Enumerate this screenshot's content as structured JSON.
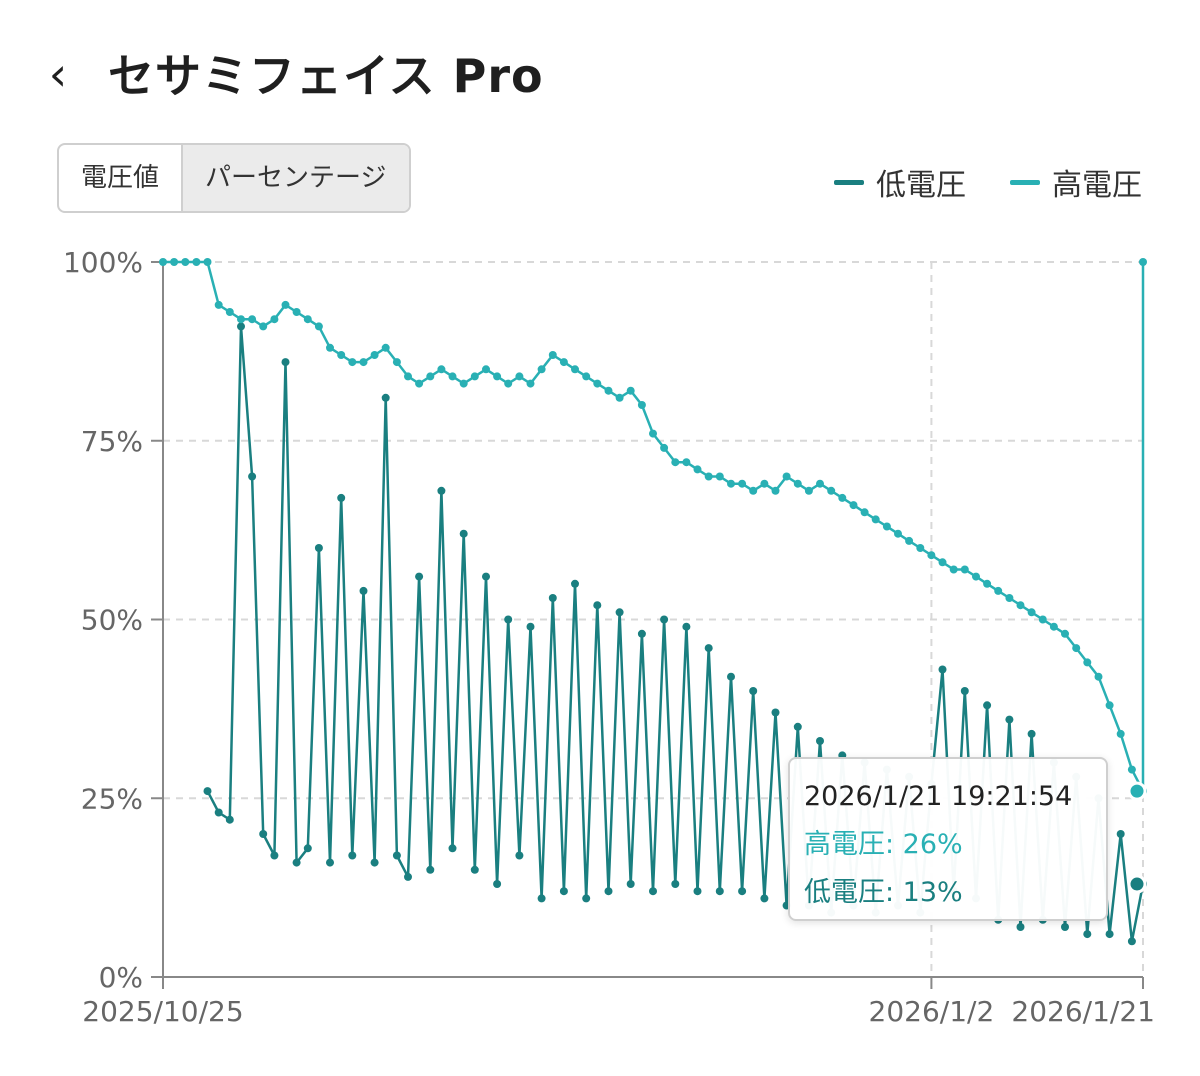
{
  "header": {
    "back_icon": "chevron-left-icon",
    "back_glyph": "‹",
    "title": "セサミフェイス Pro"
  },
  "toggle": {
    "options": [
      "電圧値",
      "パーセンテージ"
    ],
    "selected": "パーセンテージ"
  },
  "colors": {
    "low": "#1a7f80",
    "high": "#29b0b4",
    "grid": "#d8d8d8",
    "axis": "#888888"
  },
  "legend": {
    "low_label": "低電圧",
    "high_label": "高電圧"
  },
  "tooltip": {
    "time": "2026/1/21 19:21:54",
    "high_line": "高電圧: 26%",
    "low_line": "低電圧: 13%"
  },
  "chart_data": {
    "type": "line",
    "x_axis": {
      "type": "date",
      "ticks": [
        "2025/10/25",
        "2026/1/2",
        "2026/1/21"
      ],
      "range": [
        "2025/10/25",
        "2026/1/21"
      ]
    },
    "y_axis": {
      "ticks": [
        "0%",
        "25%",
        "50%",
        "75%",
        "100%"
      ],
      "range": [
        0,
        100
      ],
      "unit": "%"
    },
    "grid": true,
    "legend_position": "top-right",
    "series": [
      {
        "name": "高電圧",
        "color": "#29b0b4",
        "points": [
          [
            "2025/10/25",
            100
          ],
          [
            "2025/10/26",
            100
          ],
          [
            "2025/10/27",
            100
          ],
          [
            "2025/10/28",
            100
          ],
          [
            "2025/10/29",
            100
          ],
          [
            "2025/10/30",
            94
          ],
          [
            "2025/10/31",
            93
          ],
          [
            "2025/11/1",
            92
          ],
          [
            "2025/11/2",
            92
          ],
          [
            "2025/11/3",
            91
          ],
          [
            "2025/11/4",
            92
          ],
          [
            "2025/11/5",
            94
          ],
          [
            "2025/11/6",
            93
          ],
          [
            "2025/11/7",
            92
          ],
          [
            "2025/11/8",
            91
          ],
          [
            "2025/11/9",
            88
          ],
          [
            "2025/11/10",
            87
          ],
          [
            "2025/11/11",
            86
          ],
          [
            "2025/11/12",
            86
          ],
          [
            "2025/11/13",
            87
          ],
          [
            "2025/11/14",
            88
          ],
          [
            "2025/11/15",
            86
          ],
          [
            "2025/11/16",
            84
          ],
          [
            "2025/11/17",
            83
          ],
          [
            "2025/11/18",
            84
          ],
          [
            "2025/11/19",
            85
          ],
          [
            "2025/11/20",
            84
          ],
          [
            "2025/11/21",
            83
          ],
          [
            "2025/11/22",
            84
          ],
          [
            "2025/11/23",
            85
          ],
          [
            "2025/11/24",
            84
          ],
          [
            "2025/11/25",
            83
          ],
          [
            "2025/11/26",
            84
          ],
          [
            "2025/11/27",
            83
          ],
          [
            "2025/11/28",
            85
          ],
          [
            "2025/11/29",
            87
          ],
          [
            "2025/11/30",
            86
          ],
          [
            "2025/12/1",
            85
          ],
          [
            "2025/12/2",
            84
          ],
          [
            "2025/12/3",
            83
          ],
          [
            "2025/12/4",
            82
          ],
          [
            "2025/12/5",
            81
          ],
          [
            "2025/12/6",
            82
          ],
          [
            "2025/12/7",
            80
          ],
          [
            "2025/12/8",
            76
          ],
          [
            "2025/12/9",
            74
          ],
          [
            "2025/12/10",
            72
          ],
          [
            "2025/12/11",
            72
          ],
          [
            "2025/12/12",
            71
          ],
          [
            "2025/12/13",
            70
          ],
          [
            "2025/12/14",
            70
          ],
          [
            "2025/12/15",
            69
          ],
          [
            "2025/12/16",
            69
          ],
          [
            "2025/12/17",
            68
          ],
          [
            "2025/12/18",
            69
          ],
          [
            "2025/12/19",
            68
          ],
          [
            "2025/12/20",
            70
          ],
          [
            "2025/12/21",
            69
          ],
          [
            "2025/12/22",
            68
          ],
          [
            "2025/12/23",
            69
          ],
          [
            "2025/12/24",
            68
          ],
          [
            "2025/12/25",
            67
          ],
          [
            "2025/12/26",
            66
          ],
          [
            "2025/12/27",
            65
          ],
          [
            "2025/12/28",
            64
          ],
          [
            "2025/12/29",
            63
          ],
          [
            "2025/12/30",
            62
          ],
          [
            "2025/12/31",
            61
          ],
          [
            "2026/1/1",
            60
          ],
          [
            "2026/1/2",
            59
          ],
          [
            "2026/1/3",
            58
          ],
          [
            "2026/1/4",
            57
          ],
          [
            "2026/1/5",
            57
          ],
          [
            "2026/1/6",
            56
          ],
          [
            "2026/1/7",
            55
          ],
          [
            "2026/1/8",
            54
          ],
          [
            "2026/1/9",
            53
          ],
          [
            "2026/1/10",
            52
          ],
          [
            "2026/1/11",
            51
          ],
          [
            "2026/1/12",
            50
          ],
          [
            "2026/1/13",
            49
          ],
          [
            "2026/1/14",
            48
          ],
          [
            "2026/1/15",
            46
          ],
          [
            "2026/1/16",
            44
          ],
          [
            "2026/1/17",
            42
          ],
          [
            "2026/1/18",
            38
          ],
          [
            "2026/1/19",
            34
          ],
          [
            "2026/1/20",
            29
          ],
          [
            "2026/1/21",
            26
          ],
          [
            "2026/1/21",
            100
          ]
        ]
      },
      {
        "name": "低電圧",
        "color": "#1a7f80",
        "points": [
          [
            "2025/10/29",
            26
          ],
          [
            "2025/10/30",
            23
          ],
          [
            "2025/10/31",
            22
          ],
          [
            "2025/11/1",
            91
          ],
          [
            "2025/11/2",
            70
          ],
          [
            "2025/11/3",
            20
          ],
          [
            "2025/11/4",
            17
          ],
          [
            "2025/11/5",
            86
          ],
          [
            "2025/11/6",
            16
          ],
          [
            "2025/11/7",
            18
          ],
          [
            "2025/11/8",
            60
          ],
          [
            "2025/11/9",
            16
          ],
          [
            "2025/11/10",
            67
          ],
          [
            "2025/11/11",
            17
          ],
          [
            "2025/11/12",
            54
          ],
          [
            "2025/11/13",
            16
          ],
          [
            "2025/11/14",
            81
          ],
          [
            "2025/11/15",
            17
          ],
          [
            "2025/11/16",
            14
          ],
          [
            "2025/11/17",
            56
          ],
          [
            "2025/11/18",
            15
          ],
          [
            "2025/11/19",
            68
          ],
          [
            "2025/11/20",
            18
          ],
          [
            "2025/11/21",
            62
          ],
          [
            "2025/11/22",
            15
          ],
          [
            "2025/11/23",
            56
          ],
          [
            "2025/11/24",
            13
          ],
          [
            "2025/11/25",
            50
          ],
          [
            "2025/11/26",
            17
          ],
          [
            "2025/11/27",
            49
          ],
          [
            "2025/11/28",
            11
          ],
          [
            "2025/11/29",
            53
          ],
          [
            "2025/11/30",
            12
          ],
          [
            "2025/12/1",
            55
          ],
          [
            "2025/12/2",
            11
          ],
          [
            "2025/12/3",
            52
          ],
          [
            "2025/12/4",
            12
          ],
          [
            "2025/12/5",
            51
          ],
          [
            "2025/12/6",
            13
          ],
          [
            "2025/12/7",
            48
          ],
          [
            "2025/12/8",
            12
          ],
          [
            "2025/12/9",
            50
          ],
          [
            "2025/12/10",
            13
          ],
          [
            "2025/12/11",
            49
          ],
          [
            "2025/12/12",
            12
          ],
          [
            "2025/12/13",
            46
          ],
          [
            "2025/12/14",
            12
          ],
          [
            "2025/12/15",
            42
          ],
          [
            "2025/12/16",
            12
          ],
          [
            "2025/12/17",
            40
          ],
          [
            "2025/12/18",
            11
          ],
          [
            "2025/12/19",
            37
          ],
          [
            "2025/12/20",
            10
          ],
          [
            "2025/12/21",
            35
          ],
          [
            "2025/12/22",
            10
          ],
          [
            "2025/12/23",
            33
          ],
          [
            "2025/12/24",
            9
          ],
          [
            "2025/12/25",
            31
          ],
          [
            "2025/12/26",
            10
          ],
          [
            "2025/12/27",
            30
          ],
          [
            "2025/12/28",
            9
          ],
          [
            "2025/12/29",
            29
          ],
          [
            "2025/12/30",
            10
          ],
          [
            "2025/12/31",
            28
          ],
          [
            "2026/1/1",
            9
          ],
          [
            "2026/1/2",
            27
          ],
          [
            "2026/1/3",
            43
          ],
          [
            "2026/1/4",
            12
          ],
          [
            "2026/1/5",
            40
          ],
          [
            "2026/1/6",
            11
          ],
          [
            "2026/1/7",
            38
          ],
          [
            "2026/1/8",
            8
          ],
          [
            "2026/1/9",
            36
          ],
          [
            "2026/1/10",
            7
          ],
          [
            "2026/1/11",
            34
          ],
          [
            "2026/1/12",
            8
          ],
          [
            "2026/1/13",
            30
          ],
          [
            "2026/1/14",
            7
          ],
          [
            "2026/1/15",
            28
          ],
          [
            "2026/1/16",
            6
          ],
          [
            "2026/1/17",
            25
          ],
          [
            "2026/1/18",
            6
          ],
          [
            "2026/1/19",
            20
          ],
          [
            "2026/1/20",
            5
          ],
          [
            "2026/1/21",
            13
          ]
        ]
      }
    ],
    "highlight": {
      "time": "2026/1/21 19:21:54",
      "高電圧": 26,
      "低電圧": 13
    }
  }
}
